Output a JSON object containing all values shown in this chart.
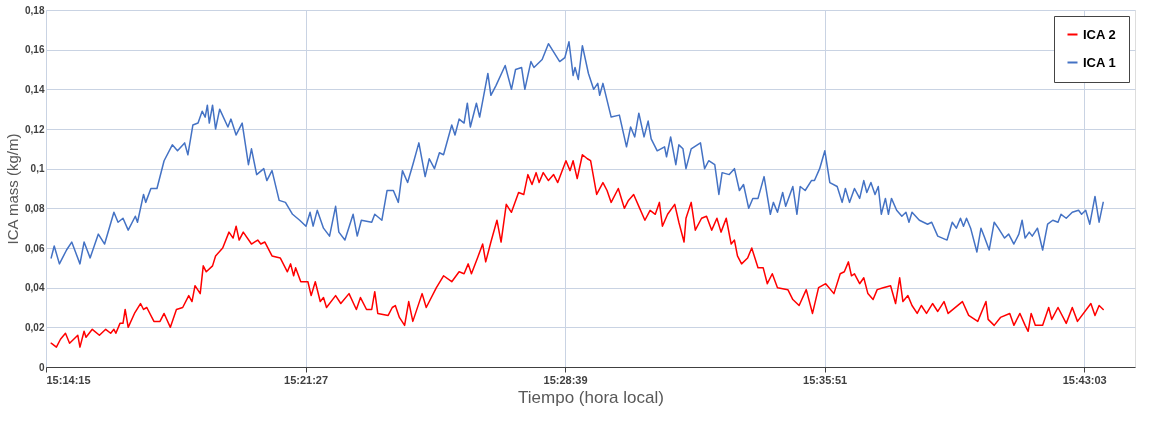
{
  "chart_data": {
    "type": "line",
    "xlabel": "Tiempo (hora local)",
    "ylabel": "ICA mass (kg/m)",
    "xlim": [
      15.2375,
      15.741
    ],
    "xticks": [
      {
        "value": 15.2375,
        "label": "15:14:15"
      },
      {
        "value": 15.3575,
        "label": "15:21:27"
      },
      {
        "value": 15.4775,
        "label": "15:28:39"
      },
      {
        "value": 15.5975,
        "label": "15:35:51"
      },
      {
        "value": 15.7175,
        "label": "15:43:03"
      }
    ],
    "ylim": [
      0,
      0.18
    ],
    "yticks": [
      0,
      {
        "value": 0.02,
        "label": "0,02"
      },
      {
        "value": 0.04,
        "label": "0,04"
      },
      {
        "value": 0.06,
        "label": "0,06"
      },
      {
        "value": 0.08,
        "label": "0,08"
      },
      {
        "value": 0.1,
        "label": "0,1"
      },
      {
        "value": 0.12,
        "label": "0,12"
      },
      {
        "value": 0.14,
        "label": "0,14"
      },
      {
        "value": 0.16,
        "label": "0,16"
      },
      {
        "value": 0.18,
        "label": "0,18"
      }
    ],
    "grid": true,
    "legend": "top right",
    "marker": "none",
    "line_style": "solid",
    "series": [
      {
        "name": "ICA 2",
        "color": "#ff0000",
        "x": [
          15.2399,
          15.2423,
          15.2442,
          15.2465,
          15.2484,
          15.2522,
          15.2532,
          15.2551,
          15.256,
          15.2589,
          15.2622,
          15.2651,
          15.2674,
          15.2689,
          15.2698,
          15.2717,
          15.2731,
          15.2741,
          15.2755,
          15.2784,
          15.2812,
          15.2826,
          15.2841,
          15.2874,
          15.2902,
          15.2921,
          15.295,
          15.2978,
          15.3007,
          15.3035,
          15.305,
          15.3064,
          15.3088,
          15.3102,
          15.3116,
          15.3145,
          15.3159,
          15.3192,
          15.3221,
          15.324,
          15.3254,
          15.3268,
          15.3287,
          15.3325,
          15.3354,
          15.3368,
          15.3387,
          15.342,
          15.3458,
          15.3491,
          15.3506,
          15.352,
          15.3529,
          15.3553,
          15.3586,
          15.3601,
          15.362,
          15.3643,
          15.3658,
          15.3672,
          15.3714,
          15.3738,
          15.3776,
          15.381,
          15.3829,
          15.3857,
          15.3881,
          15.3895,
          15.3909,
          15.3957,
          15.3976,
          15.399,
          15.4009,
          15.4033,
          15.4052,
          15.4071,
          15.4114,
          15.4133,
          15.418,
          15.4213,
          15.4251,
          15.4285,
          15.4308,
          15.4327,
          15.4342,
          15.437,
          15.4394,
          15.4408,
          15.4432,
          15.446,
          15.4479,
          15.4503,
          15.4527,
          15.456,
          15.4584,
          15.4603,
          15.4622,
          15.4641,
          15.4655,
          15.4674,
          15.4698,
          15.4722,
          15.4741,
          15.4779,
          15.4798,
          15.4812,
          15.4831,
          15.4855,
          15.4878,
          15.4893,
          15.4921,
          15.495,
          15.4969,
          15.4988,
          15.5021,
          15.5049,
          15.5068,
          15.5092,
          15.5116,
          15.5144,
          15.5168,
          15.5192,
          15.5211,
          15.5225,
          15.5249,
          15.5282,
          15.5301,
          15.5325,
          15.5334,
          15.5358,
          15.5377,
          15.5406,
          15.5429,
          15.5453,
          15.5477,
          15.5496,
          15.552,
          15.5543,
          15.5558,
          15.5572,
          15.5591,
          15.5619,
          15.5638,
          15.5667,
          15.5691,
          15.571,
          15.5733,
          15.5757,
          15.5805,
          15.5828,
          15.5857,
          15.589,
          15.5919,
          15.5947,
          15.598,
          15.6018,
          15.6047,
          15.6066,
          15.6085,
          15.6099,
          15.6113,
          15.6137,
          15.6156,
          15.6175,
          15.6199,
          15.6218,
          15.6246,
          15.628,
          15.6303,
          15.6322,
          15.6337,
          15.636,
          15.6379,
          15.6403,
          15.6422,
          15.6446,
          15.6474,
          15.6498,
          15.6527,
          15.6546,
          15.6612,
          15.6641,
          15.6683,
          15.6721,
          15.6731,
          15.6759,
          15.6788,
          15.6831,
          15.685,
          15.6878,
          15.6902,
          15.6916,
          15.693,
          15.6949,
          15.6983,
          15.7011,
          15.7025,
          15.7054,
          15.7092,
          15.712,
          15.7144,
          15.7206,
          15.7225,
          15.7244,
          15.7263
        ],
        "values": [
          0.012,
          0.01,
          0.014,
          0.017,
          0.012,
          0.016,
          0.01,
          0.018,
          0.015,
          0.019,
          0.016,
          0.019,
          0.017,
          0.019,
          0.017,
          0.022,
          0.022,
          0.029,
          0.02,
          0.027,
          0.032,
          0.029,
          0.03,
          0.023,
          0.023,
          0.027,
          0.02,
          0.029,
          0.03,
          0.036,
          0.033,
          0.041,
          0.037,
          0.051,
          0.048,
          0.051,
          0.056,
          0.06,
          0.068,
          0.065,
          0.071,
          0.064,
          0.068,
          0.062,
          0.064,
          0.062,
          0.063,
          0.056,
          0.055,
          0.048,
          0.052,
          0.046,
          0.05,
          0.043,
          0.043,
          0.036,
          0.043,
          0.033,
          0.035,
          0.03,
          0.036,
          0.032,
          0.037,
          0.029,
          0.035,
          0.029,
          0.029,
          0.038,
          0.027,
          0.026,
          0.03,
          0.031,
          0.025,
          0.021,
          0.033,
          0.023,
          0.037,
          0.03,
          0.04,
          0.046,
          0.043,
          0.048,
          0.047,
          0.052,
          0.047,
          0.055,
          0.062,
          0.053,
          0.063,
          0.074,
          0.063,
          0.082,
          0.078,
          0.088,
          0.087,
          0.097,
          0.092,
          0.098,
          0.093,
          0.098,
          0.094,
          0.097,
          0.093,
          0.104,
          0.099,
          0.104,
          0.095,
          0.107,
          0.105,
          0.104,
          0.087,
          0.093,
          0.089,
          0.083,
          0.09,
          0.08,
          0.084,
          0.087,
          0.081,
          0.074,
          0.079,
          0.077,
          0.083,
          0.071,
          0.077,
          0.082,
          0.073,
          0.063,
          0.075,
          0.083,
          0.069,
          0.075,
          0.076,
          0.069,
          0.075,
          0.068,
          0.075,
          0.062,
          0.064,
          0.056,
          0.052,
          0.055,
          0.06,
          0.05,
          0.05,
          0.042,
          0.047,
          0.04,
          0.039,
          0.034,
          0.031,
          0.039,
          0.027,
          0.04,
          0.042,
          0.037,
          0.047,
          0.048,
          0.053,
          0.046,
          0.047,
          0.042,
          0.045,
          0.037,
          0.034,
          0.039,
          0.04,
          0.041,
          0.032,
          0.045,
          0.033,
          0.036,
          0.031,
          0.027,
          0.031,
          0.027,
          0.032,
          0.028,
          0.033,
          0.027,
          0.033,
          0.026,
          0.023,
          0.033,
          0.024,
          0.021,
          0.025,
          0.027,
          0.021,
          0.027,
          0.021,
          0.018,
          0.027,
          0.021,
          0.021,
          0.03,
          0.024,
          0.03,
          0.022,
          0.03,
          0.023,
          0.032,
          0.026,
          0.031,
          0.029
        ]
      },
      {
        "name": "ICA 1",
        "color": "#4472c4",
        "x": [
          15.2399,
          15.2413,
          15.2437,
          15.247,
          15.2494,
          15.2532,
          15.2551,
          15.2579,
          15.2617,
          15.2646,
          15.2689,
          15.2708,
          15.2731,
          15.2755,
          15.2788,
          15.2798,
          15.2826,
          15.2836,
          15.286,
          15.2888,
          15.2921,
          15.2959,
          15.2983,
          15.3016,
          15.3031,
          15.3054,
          15.3078,
          15.3097,
          15.3111,
          15.3121,
          15.313,
          15.3145,
          15.3159,
          15.3178,
          15.3216,
          15.323,
          15.3254,
          15.3282,
          15.3311,
          15.3325,
          15.3349,
          15.3382,
          15.3396,
          15.342,
          15.3453,
          15.3482,
          15.3515,
          15.3548,
          15.3577,
          15.3596,
          15.361,
          15.3629,
          15.3658,
          15.3686,
          15.3714,
          15.3729,
          15.3757,
          15.3795,
          15.3814,
          15.3833,
          15.3881,
          15.3895,
          15.3928,
          15.3952,
          15.3981,
          15.4004,
          15.4023,
          15.4047,
          15.4071,
          15.4099,
          15.4128,
          15.4147,
          15.4171,
          15.4194,
          15.4213,
          15.4251,
          15.4266,
          15.4285,
          15.4308,
          15.4323,
          15.4337,
          15.4365,
          15.438,
          15.4418,
          15.4432,
          15.4456,
          15.4498,
          15.4527,
          15.4546,
          15.4574,
          15.4589,
          15.4617,
          15.4631,
          15.4669,
          15.4698,
          15.475,
          15.4774,
          15.4793,
          15.4812,
          15.4821,
          15.4836,
          15.4855,
          15.4883,
          15.4907,
          15.4926,
          15.4935,
          15.495,
          15.4988,
          15.5026,
          15.5059,
          15.5078,
          15.5097,
          15.5116,
          15.514,
          15.5159,
          15.5173,
          15.5201,
          15.5235,
          15.5244,
          15.5263,
          15.5287,
          15.5301,
          15.532,
          15.5334,
          15.5358,
          15.5401,
          15.542,
          15.5439,
          15.5467,
          15.5486,
          15.5501,
          15.5534,
          15.5558,
          15.5581,
          15.56,
          15.5624,
          15.5643,
          15.5667,
          15.5695,
          15.5724,
          15.5738,
          15.5757,
          15.5781,
          15.5795,
          15.5828,
          15.5847,
          15.5862,
          15.5885,
          15.5914,
          15.5928,
          15.5952,
          15.5976,
          15.5999,
          15.6033,
          15.6056,
          15.6071,
          15.609,
          15.6113,
          15.6137,
          15.6156,
          15.617,
          15.6189,
          15.6208,
          15.6223,
          15.6237,
          15.6256,
          15.627,
          15.6284,
          15.6308,
          15.6332,
          15.6351,
          15.6365,
          15.6379,
          15.6413,
          15.6451,
          15.647,
          15.6498,
          15.6541,
          15.6565,
          15.6584,
          15.6603,
          15.6617,
          15.6631,
          15.665,
          15.6679,
          15.6698,
          15.6712,
          15.6736,
          15.6759,
          15.6778,
          15.6807,
          15.6826,
          15.685,
          15.6873,
          15.6888,
          15.6902,
          15.6921,
          15.6935,
          15.6959,
          15.6983,
          15.7006,
          15.703,
          15.7054,
          15.7068,
          15.7092,
          15.712,
          15.7149,
          15.7163,
          15.7182,
          15.7201,
          15.7225,
          15.7244,
          15.7263
        ],
        "values": [
          0.055,
          0.061,
          0.052,
          0.059,
          0.063,
          0.052,
          0.063,
          0.055,
          0.067,
          0.062,
          0.078,
          0.073,
          0.075,
          0.069,
          0.076,
          0.073,
          0.087,
          0.083,
          0.09,
          0.09,
          0.104,
          0.112,
          0.109,
          0.113,
          0.107,
          0.122,
          0.123,
          0.129,
          0.126,
          0.132,
          0.123,
          0.132,
          0.12,
          0.13,
          0.121,
          0.125,
          0.117,
          0.123,
          0.102,
          0.11,
          0.097,
          0.1,
          0.094,
          0.099,
          0.084,
          0.083,
          0.077,
          0.074,
          0.071,
          0.078,
          0.071,
          0.079,
          0.07,
          0.066,
          0.081,
          0.068,
          0.064,
          0.077,
          0.066,
          0.074,
          0.073,
          0.077,
          0.074,
          0.089,
          0.089,
          0.083,
          0.099,
          0.093,
          0.102,
          0.113,
          0.096,
          0.105,
          0.1,
          0.108,
          0.107,
          0.122,
          0.117,
          0.125,
          0.123,
          0.133,
          0.121,
          0.133,
          0.126,
          0.148,
          0.137,
          0.142,
          0.152,
          0.14,
          0.15,
          0.151,
          0.14,
          0.154,
          0.151,
          0.155,
          0.163,
          0.154,
          0.156,
          0.164,
          0.147,
          0.151,
          0.145,
          0.162,
          0.148,
          0.14,
          0.143,
          0.137,
          0.143,
          0.126,
          0.127,
          0.111,
          0.121,
          0.116,
          0.128,
          0.116,
          0.124,
          0.115,
          0.109,
          0.111,
          0.106,
          0.116,
          0.102,
          0.112,
          0.11,
          0.1,
          0.11,
          0.113,
          0.1,
          0.104,
          0.102,
          0.087,
          0.098,
          0.097,
          0.1,
          0.089,
          0.092,
          0.08,
          0.085,
          0.085,
          0.096,
          0.077,
          0.083,
          0.078,
          0.088,
          0.081,
          0.091,
          0.077,
          0.091,
          0.089,
          0.094,
          0.094,
          0.1,
          0.109,
          0.093,
          0.091,
          0.083,
          0.09,
          0.083,
          0.09,
          0.085,
          0.094,
          0.088,
          0.093,
          0.087,
          0.091,
          0.077,
          0.085,
          0.077,
          0.085,
          0.079,
          0.076,
          0.078,
          0.073,
          0.078,
          0.074,
          0.072,
          0.073,
          0.066,
          0.064,
          0.073,
          0.07,
          0.075,
          0.071,
          0.075,
          0.07,
          0.058,
          0.07,
          0.066,
          0.059,
          0.073,
          0.07,
          0.065,
          0.067,
          0.062,
          0.067,
          0.074,
          0.065,
          0.068,
          0.066,
          0.07,
          0.059,
          0.072,
          0.074,
          0.073,
          0.077,
          0.075,
          0.078,
          0.079,
          0.077,
          0.079,
          0.072,
          0.086,
          0.073,
          0.083
        ]
      }
    ]
  }
}
